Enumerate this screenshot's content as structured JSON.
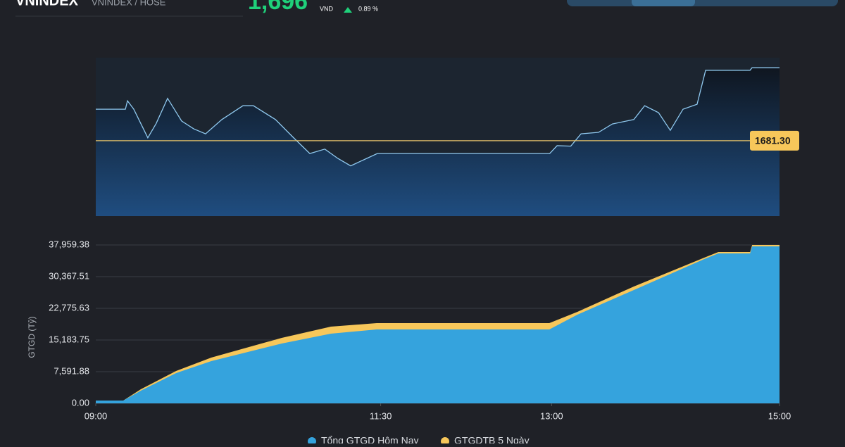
{
  "header": {
    "symbol": "VNINDEX",
    "exchange": "VNINDEX / HOSE",
    "price": "1,696",
    "currency": "VND",
    "change_pct": "0.89 %"
  },
  "chart_data": [
    {
      "type": "line",
      "reference": {
        "value": 1681.3,
        "label": "1681.30"
      },
      "xlim": [
        540,
        900
      ],
      "ylim": [
        1666,
        1697
      ],
      "x": [
        540,
        555.6,
        556.7,
        560,
        567.4,
        571.8,
        577.8,
        585.2,
        591.6,
        597.8,
        606.4,
        617.5,
        623,
        634.6,
        643.9,
        652.7,
        660.6,
        667.5,
        674.2,
        682.6,
        688.2,
        779,
        782.9,
        790.1,
        795.5,
        804.7,
        812,
        823.3,
        829,
        836.3,
        842.5,
        849.2,
        856.6,
        861.1,
        867.7,
        884.5,
        885.5,
        900
      ],
      "series": [
        {
          "color": "#8fc8ee",
          "values": [
            1687.7,
            1687.7,
            1689.4,
            1687.7,
            1681.9,
            1684.8,
            1689.9,
            1685.3,
            1683.7,
            1682.7,
            1685.6,
            1688.4,
            1688.4,
            1685.6,
            1682.0,
            1678.7,
            1679.6,
            1677.7,
            1676.2,
            1677.7,
            1678.7,
            1678.7,
            1680.3,
            1680.2,
            1682.7,
            1683.0,
            1684.7,
            1685.6,
            1688.4,
            1687.0,
            1683.4,
            1687.7,
            1688.7,
            1695.6,
            1695.6,
            1695.6,
            1696.1,
            1696.1
          ]
        }
      ]
    },
    {
      "type": "area",
      "y_label": "GTGD (Tỷ)",
      "xlim": [
        540,
        900
      ],
      "xticks": [
        {
          "value": 540,
          "label": "09:00"
        },
        {
          "value": 690,
          "label": "11:30"
        },
        {
          "value": 780,
          "label": "13:00"
        },
        {
          "value": 900,
          "label": "15:00"
        }
      ],
      "ylim": [
        0,
        37959.38
      ],
      "yticks": [
        {
          "value": 0,
          "label": "0.00"
        },
        {
          "value": 7591.88,
          "label": "7,591.88"
        },
        {
          "value": 15183.75,
          "label": "15,183.75"
        },
        {
          "value": 22775.63,
          "label": "22,775.63"
        },
        {
          "value": 30367.51,
          "label": "30,367.51"
        },
        {
          "value": 37959.38,
          "label": "37,959.38"
        }
      ],
      "grid": true,
      "x": [
        540,
        554.5,
        563.7,
        582.3,
        600.8,
        637.9,
        663.8,
        687.9,
        778.8,
        793.6,
        823.3,
        860.4,
        867.8,
        884.5,
        885.6,
        900
      ],
      "series": [
        {
          "name": "Tổng GTGD Hôm Nay",
          "color": "#35a3dd",
          "values": [
            675,
            675,
            3037,
            7254,
            10123,
            14340,
            16703,
            17714,
            17714,
            21258,
            27161,
            34584,
            35934,
            35934,
            37620,
            37620
          ]
        },
        {
          "name": "GTGDTB 5 Ngày",
          "color": "#f7c75a",
          "values": [
            675,
            675,
            3374,
            7760,
            10966,
            15689,
            18388,
            19232,
            19232,
            21931,
            28004,
            34921,
            36270,
            36270,
            37959,
            37959
          ]
        }
      ]
    }
  ]
}
